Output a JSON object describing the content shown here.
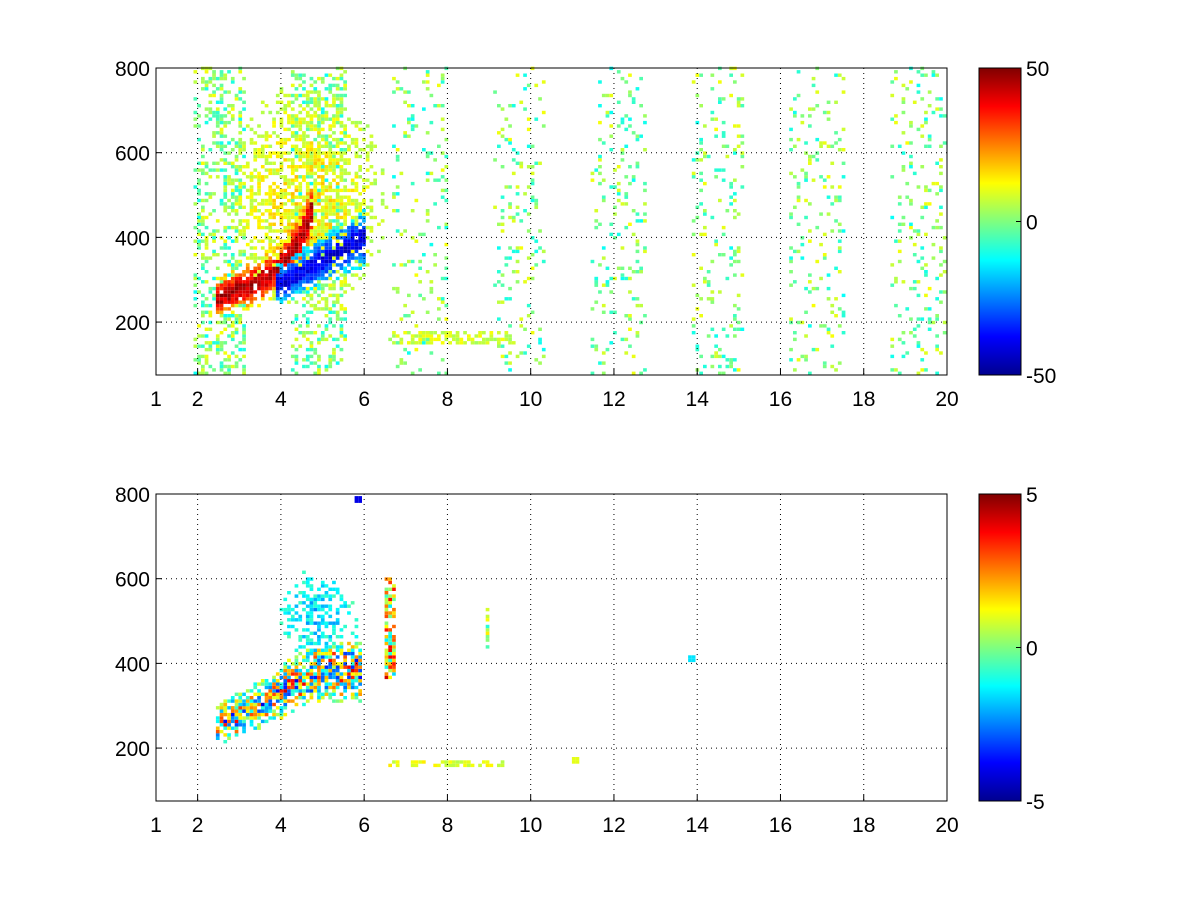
{
  "chart_data": [
    {
      "type": "heatmap",
      "title": "",
      "xlabel": "",
      "ylabel": "",
      "xlim": [
        1,
        20
      ],
      "ylim": [
        75,
        800
      ],
      "grid": "on",
      "grid_style": "dotted",
      "x_ticks": [
        1,
        2,
        4,
        6,
        8,
        10,
        12,
        14,
        16,
        18,
        20
      ],
      "x_tick_labels": [
        "1",
        "2",
        "4",
        "6",
        "8",
        "10",
        "12",
        "14",
        "16",
        "18",
        "20"
      ],
      "y_ticks": [
        200,
        400,
        600,
        800
      ],
      "y_tick_labels": [
        "200",
        "400",
        "600",
        "800"
      ],
      "colormap": "jet",
      "clim": [
        -50,
        50
      ],
      "colorbar_ticks": [
        -50,
        0,
        50
      ],
      "colorbar_tick_labels": [
        "-50",
        "0",
        "50"
      ],
      "features": [
        {
          "kind": "ridge",
          "sign": "positive",
          "points": [
            [
              2.4,
              250
            ],
            [
              3.0,
              275
            ],
            [
              3.5,
              295
            ],
            [
              4.0,
              330
            ],
            [
              4.4,
              390
            ],
            [
              4.7,
              460
            ]
          ],
          "peak": 45
        },
        {
          "kind": "ridge",
          "sign": "negative",
          "points": [
            [
              3.8,
              280
            ],
            [
              4.4,
              310
            ],
            [
              5.0,
              345
            ],
            [
              5.5,
              370
            ],
            [
              6.0,
              395
            ]
          ],
          "peak": -40
        },
        {
          "kind": "patch",
          "sign": "positive",
          "x": [
            2.6,
            6.5
          ],
          "y": [
            200,
            760
          ],
          "peak": 20
        },
        {
          "kind": "streaks",
          "x_range": [
            1,
            20
          ],
          "density": "dense below x=6, sparse above",
          "values_range": [
            -12,
            12
          ]
        },
        {
          "kind": "band",
          "x": [
            6.5,
            9.5
          ],
          "y": [
            140,
            175
          ],
          "value": 8
        }
      ]
    },
    {
      "type": "heatmap",
      "title": "",
      "xlabel": "",
      "ylabel": "",
      "xlim": [
        1,
        20
      ],
      "ylim": [
        75,
        800
      ],
      "grid": "on",
      "grid_style": "dotted",
      "x_ticks": [
        1,
        2,
        4,
        6,
        8,
        10,
        12,
        14,
        16,
        18,
        20
      ],
      "x_tick_labels": [
        "1",
        "2",
        "4",
        "6",
        "8",
        "10",
        "12",
        "14",
        "16",
        "18",
        "20"
      ],
      "y_ticks": [
        200,
        400,
        600,
        800
      ],
      "y_tick_labels": [
        "200",
        "400",
        "600",
        "800"
      ],
      "colormap": "jet",
      "clim": [
        -5,
        5
      ],
      "colorbar_ticks": [
        -5,
        0,
        5
      ],
      "colorbar_tick_labels": [
        "-5",
        "0",
        "5"
      ],
      "features": [
        {
          "kind": "ridge",
          "sign": "mixed",
          "points": [
            [
              2.4,
              250
            ],
            [
              3.0,
              275
            ],
            [
              3.5,
              300
            ],
            [
              4.0,
              330
            ],
            [
              4.5,
              360
            ],
            [
              5.0,
              380
            ],
            [
              5.9,
              380
            ]
          ],
          "peak": 4
        },
        {
          "kind": "patch",
          "sign": "negative",
          "x": [
            3.9,
            5.8
          ],
          "y": [
            400,
            620
          ],
          "peak": -2.5
        },
        {
          "kind": "column",
          "x": [
            6.4,
            6.7
          ],
          "y": [
            360,
            600
          ],
          "peak": 4
        },
        {
          "kind": "column",
          "x": [
            8.9,
            9.0
          ],
          "y": [
            430,
            525
          ],
          "peak": 2
        },
        {
          "kind": "band",
          "x": [
            6.5,
            9.3
          ],
          "y": [
            150,
            170
          ],
          "value": 1
        },
        {
          "kind": "speck",
          "x": 13.8,
          "y": 410,
          "value": -1.5
        },
        {
          "kind": "speck",
          "x": 11.0,
          "y": 170,
          "value": 1
        },
        {
          "kind": "speck",
          "x": 5.8,
          "y": 785,
          "value": -4
        }
      ]
    }
  ]
}
